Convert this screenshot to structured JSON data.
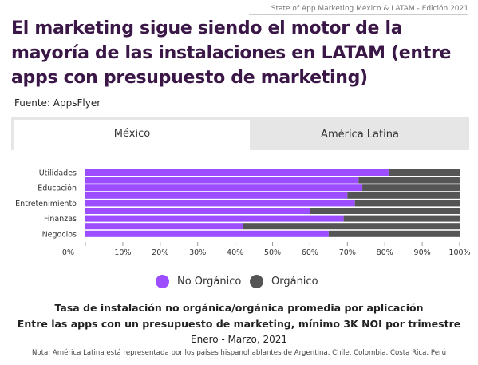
{
  "header": {
    "edition": "State of App Marketing México & LATAM - Edición 2021",
    "title": "El marketing sigue siendo el motor de la mayoría de las instalaciones en LATAM (entre apps con presupuesto de marketing)",
    "source": "Fuente: AppsFlyer"
  },
  "tabs": [
    {
      "label": "México",
      "active": true
    },
    {
      "label": "América Latina",
      "active": false
    }
  ],
  "chart_data": {
    "type": "bar",
    "orientation": "horizontal",
    "stacked": true,
    "categories": [
      "Utilidades",
      "Educación",
      "Entretenimiento",
      "Finanzas",
      "Negocios"
    ],
    "x_ticks": [
      "0%",
      "10%",
      "20%",
      "30%",
      "40%",
      "50%",
      "60%",
      "70%",
      "80%",
      "90%",
      "100%"
    ],
    "xlim": [
      0,
      100
    ],
    "series": [
      {
        "name": "No Orgánico",
        "color": "#9b4dff",
        "values": [
          81,
          74,
          72,
          69,
          65
        ]
      },
      {
        "name": "Orgánico",
        "color": "#555555",
        "values": [
          19,
          26,
          28,
          31,
          35
        ]
      }
    ],
    "extra_segments": [
      {
        "no_organico": 73,
        "organico": 27
      },
      {
        "no_organico": 70,
        "organico": 30
      },
      {
        "no_organico": 60,
        "organico": 40
      },
      {
        "no_organico": 42,
        "organico": 58
      }
    ],
    "legend_position": "bottom",
    "grid": false
  },
  "legend": [
    {
      "label": "No Orgánico",
      "color": "#9b4dff"
    },
    {
      "label": "Orgánico",
      "color": "#555555"
    }
  ],
  "caption": {
    "line1": "Tasa de instalación no orgánica/orgánica promedia por aplicación",
    "line2": "Entre las apps con un presupuesto de marketing, mínimo 3K NOI por trimestre",
    "line3": "Enero - Marzo, 2021",
    "note": "Nota: América Latina está representada por los países hispanohablantes de Argentina, Chile, Colombia, Costa Rica, Perú"
  }
}
